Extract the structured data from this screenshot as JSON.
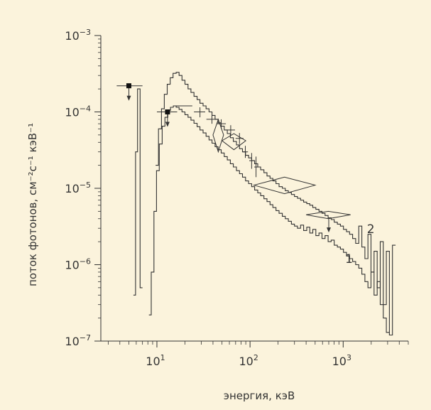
{
  "chart_data": {
    "type": "line",
    "xscale": "log",
    "yscale": "log",
    "xlim": [
      2.5,
      5000
    ],
    "ylim": [
      1e-07,
      0.001
    ],
    "xlabel": "энергия, кэВ",
    "ylabel": "поток фотонов, см⁻²с⁻¹ кэВ⁻¹",
    "xticklabels": [
      {
        "base": "10",
        "exp": "1"
      },
      {
        "base": "10",
        "exp": "2"
      },
      {
        "base": "10",
        "exp": "3"
      }
    ],
    "yticklabels": [
      {
        "base": "10",
        "exp": "−3"
      },
      {
        "base": "10",
        "exp": "−4"
      },
      {
        "base": "10",
        "exp": "−5"
      },
      {
        "base": "10",
        "exp": "−6"
      },
      {
        "base": "10",
        "exp": "−7"
      }
    ],
    "series": [
      {
        "name": "1",
        "edges": [
          8.2,
          8.7,
          9.3,
          9.9,
          10.6,
          11.4,
          12.2,
          13.1,
          14.0,
          15.0,
          16.1,
          17.3,
          18.6,
          20.0,
          21.6,
          23.2,
          25.0,
          27.0,
          29.0,
          31.3,
          33.7,
          36.3,
          39.1,
          42.1,
          45.4,
          49.0,
          52.8,
          57.0,
          61.4,
          66.2,
          71.4,
          77.0,
          83.0,
          89.5,
          96.5,
          104,
          112,
          121,
          130,
          141,
          152,
          164,
          176,
          190,
          205,
          222,
          239,
          258,
          278,
          300,
          323,
          349,
          376,
          406,
          438,
          472,
          509,
          549,
          592,
          639,
          689,
          743,
          802,
          865,
          933,
          1006,
          1085,
          1171,
          1263,
          1362,
          1470,
          1585,
          1710,
          1845,
          1990,
          2147,
          2316,
          2498,
          2695,
          2907,
          3136
        ],
        "values": [
          2.2e-07,
          8e-07,
          5e-06,
          1.7e-05,
          3.8e-05,
          6.5e-05,
          8.5e-05,
          0.000105,
          0.000115,
          0.00012,
          0.000115,
          0.000108,
          0.0001,
          9.2e-05,
          8.5e-05,
          7.8e-05,
          7.1e-05,
          6.4e-05,
          5.8e-05,
          5.3e-05,
          4.8e-05,
          4.3e-05,
          3.9e-05,
          3.5e-05,
          3.2e-05,
          2.9e-05,
          2.6e-05,
          2.35e-05,
          2.1e-05,
          1.9e-05,
          1.7e-05,
          1.55e-05,
          1.4e-05,
          1.25e-05,
          1.15e-05,
          1.05e-05,
          9.5e-06,
          8.7e-06,
          8e-06,
          7.3e-06,
          6.7e-06,
          6.1e-06,
          5.6e-06,
          5.1e-06,
          4.7e-06,
          4.3e-06,
          4e-06,
          3.7e-06,
          3.4e-06,
          3.2e-06,
          3e-06,
          3.3e-06,
          2.8e-06,
          3.1e-06,
          2.6e-06,
          2.9e-06,
          2.4e-06,
          2.6e-06,
          2.2e-06,
          2.4e-06,
          2e-06,
          2.1e-06,
          1.8e-06,
          1.7e-06,
          1.6e-06,
          1.45e-06,
          1.3e-06,
          1.2e-06,
          1.1e-06,
          1e-06,
          9e-07,
          7.5e-07,
          6e-07,
          5e-07,
          8e-07,
          4e-07,
          6e-07,
          3e-07,
          2e-07,
          1.3e-07
        ]
      },
      {
        "name": "2",
        "edges": [
          9.7,
          10.4,
          11.2,
          12.0,
          12.9,
          13.9,
          14.9,
          16.1,
          17.3,
          18.6,
          20.0,
          21.6,
          23.2,
          25.0,
          27.0,
          29.0,
          31.3,
          33.7,
          36.3,
          39.1,
          42.1,
          45.4,
          49.0,
          52.8,
          57.0,
          61.4,
          66.2,
          71.4,
          77.0,
          83.0,
          89.5,
          96.5,
          104,
          112,
          121,
          130,
          141,
          152,
          164,
          176,
          190,
          205,
          222,
          239,
          258,
          278,
          300,
          323,
          349,
          376,
          406,
          438,
          472,
          509,
          549,
          592,
          639,
          689,
          743,
          802,
          865,
          933,
          1006,
          1085,
          1171,
          1263,
          1362,
          1470,
          1585,
          1710,
          1845,
          1990,
          2147,
          2316,
          2498,
          2695,
          2907,
          3136,
          3383,
          3650
        ],
        "values": [
          2e-05,
          6e-05,
          0.00011,
          0.00017,
          0.00023,
          0.00028,
          0.00032,
          0.00033,
          0.0003,
          0.00026,
          0.00023,
          0.0002,
          0.00018,
          0.00016,
          0.000145,
          0.00013,
          0.00012,
          0.00011,
          0.0001,
          9e-05,
          8e-05,
          7.2e-05,
          6.5e-05,
          5.8e-05,
          5.2e-05,
          4.6e-05,
          4.1e-05,
          3.7e-05,
          3.3e-05,
          3e-05,
          2.7e-05,
          2.5e-05,
          2.3e-05,
          2.1e-05,
          1.9e-05,
          1.75e-05,
          1.6e-05,
          1.45e-05,
          1.35e-05,
          1.25e-05,
          1.15e-05,
          1.05e-05,
          1e-05,
          9.3e-06,
          8.8e-06,
          8.3e-06,
          7.8e-06,
          7.4e-06,
          7e-06,
          6.6e-06,
          6.3e-06,
          6e-06,
          5.6e-06,
          5.3e-06,
          5e-06,
          4.7e-06,
          4.4e-06,
          4.1e-06,
          3.9e-06,
          3.6e-06,
          3.4e-06,
          3.2e-06,
          2.9e-06,
          2.7e-06,
          2.5e-06,
          2.2e-06,
          1.9e-06,
          3.2e-06,
          1.7e-06,
          1.2e-06,
          2.5e-06,
          8e-07,
          1.5e-06,
          5e-07,
          2e-06,
          3e-07,
          1.5e-06,
          1.2e-07,
          1.8e-06
        ]
      },
      {
        "name": "",
        "edges": [
          5.6,
          5.9,
          6.2,
          6.6,
          7.0
        ],
        "values": [
          4e-07,
          3e-05,
          0.0002,
          5e-07
        ]
      }
    ],
    "upper_limits": [
      {
        "x": 5.0,
        "x_low": 3.7,
        "x_high": 7.0,
        "y": 0.00022
      },
      {
        "x": 13.0,
        "x_low": 10.0,
        "x_high": 16.5,
        "y": 0.0001
      }
    ],
    "crosses": [
      {
        "x": 19.5,
        "x_low": 15.0,
        "x_high": 24.0,
        "y": 0.00012
      },
      {
        "x": 29.0,
        "x_low": 25.0,
        "x_high": 33.0,
        "y": 0.0001,
        "y_low": 8.5e-05,
        "y_high": 0.000115
      },
      {
        "x": 39.0,
        "x_low": 34.0,
        "x_high": 45.0,
        "y": 8e-05,
        "y_low": 7e-05,
        "y_high": 9e-05
      },
      {
        "x": 49.0,
        "x_low": 44.0,
        "x_high": 55.0,
        "y": 7e-05,
        "y_low": 6e-05,
        "y_high": 8e-05
      },
      {
        "x": 62.0,
        "x_low": 56.0,
        "x_high": 69.0,
        "y": 5.8e-05,
        "y_low": 4.9e-05,
        "y_high": 6.7e-05
      },
      {
        "x": 77.0,
        "x_low": 70.0,
        "x_high": 85.0,
        "y": 4.5e-05,
        "y_low": 3.8e-05,
        "y_high": 5.3e-05
      },
      {
        "x": 89.0,
        "x_low": 84.0,
        "x_high": 95.0,
        "y": 3e-05,
        "y_low": 2.5e-05,
        "y_high": 3.6e-05
      },
      {
        "x": 104.0,
        "x_low": 98.0,
        "x_high": 110.0,
        "y": 2.3e-05,
        "y_low": 1.8e-05,
        "y_high": 2.9e-05
      },
      {
        "x": 116.0,
        "x_low": 111.0,
        "x_high": 122.0,
        "y": 1.9e-05,
        "y_low": 1.4e-05,
        "y_high": 2.6e-05
      }
    ],
    "boxes": [
      {
        "x_low": 40,
        "x_high": 52,
        "y_low": 3e-05,
        "y_high": 8e-05,
        "y_mid": 5e-05
      },
      {
        "x_low": 50,
        "x_high": 90,
        "y_low": 3.2e-05,
        "y_high": 5.2e-05,
        "y_mid": 4.2e-05
      },
      {
        "x_low": 110,
        "x_high": 500,
        "y_low": 8.5e-06,
        "y_high": 1.4e-05,
        "y_mid": 1.1e-05
      },
      {
        "x_low": 400,
        "x_high": 1200,
        "y_low": 4e-06,
        "y_high": 5e-06,
        "y_mid": 4.5e-06,
        "arrow_x": 700,
        "arrow_to": 2.7e-06
      }
    ],
    "annotations": [
      {
        "text": "1",
        "x": 1050,
        "y": 1.05e-06
      },
      {
        "text": "2",
        "x": 1800,
        "y": 2.6e-06
      }
    ],
    "colors": {
      "background": "#fbf3dc",
      "line": "#333333"
    }
  }
}
